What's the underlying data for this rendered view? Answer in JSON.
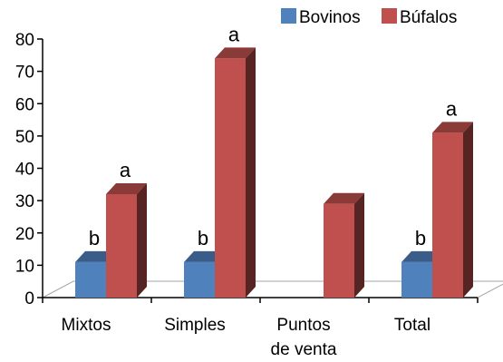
{
  "chart_data": {
    "type": "bar",
    "style": "3d-clustered-column",
    "categories": [
      [
        "Mixtos"
      ],
      [
        "Simples"
      ],
      [
        "Puntos",
        "de venta"
      ],
      [
        "Total"
      ]
    ],
    "series": [
      {
        "name": "Bovinos",
        "color": "#4F81BD",
        "values": [
          11,
          11,
          null,
          11
        ],
        "labels": [
          "b",
          "b",
          "",
          "b"
        ]
      },
      {
        "name": "Búfalos",
        "color": "#C0504D",
        "values": [
          32,
          74,
          29,
          51
        ],
        "labels": [
          "a",
          "a",
          "",
          "a"
        ]
      }
    ],
    "ylim": [
      0,
      80
    ],
    "yticks": [
      0,
      10,
      20,
      30,
      40,
      50,
      60,
      70,
      80
    ],
    "grid": false,
    "legend": "top-right"
  }
}
